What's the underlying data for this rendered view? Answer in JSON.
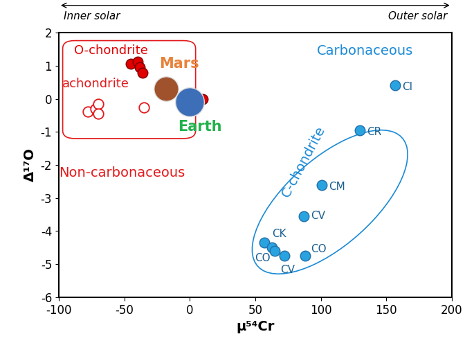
{
  "chart_data": {
    "type": "scatter",
    "x_label": "μ⁵⁴Cr",
    "y_label": "Δ¹⁷O",
    "xlim": [
      -100,
      200
    ],
    "ylim": [
      -6,
      2
    ],
    "xticks": [
      -100,
      -50,
      0,
      50,
      100,
      150,
      200
    ],
    "yticks": [
      -6,
      -5,
      -4,
      -3,
      -2,
      -1,
      0,
      1,
      2
    ],
    "grid": false,
    "arrow_labels": [
      "Inner solar",
      "Outer solar"
    ],
    "group_labels": [
      {
        "text": "Non-carbonaceous",
        "color": "#e31a1c"
      },
      {
        "text": "Carbonaceous",
        "color": "#1b8ad6"
      }
    ],
    "series": [
      {
        "name": "O-chondrite",
        "color": "#e00000",
        "marker": "circle",
        "x": [
          -45,
          -40,
          -38,
          -36,
          10
        ],
        "values": [
          1.05,
          1.12,
          0.95,
          0.78,
          0.0
        ]
      },
      {
        "name": "achondrite",
        "color": "#e31a1c",
        "marker": "open_circle",
        "x": [
          -78,
          -72,
          -70,
          -70,
          -35
        ],
        "values": [
          -0.38,
          -0.3,
          -0.15,
          -0.45,
          -0.25
        ]
      },
      {
        "name": "Mars",
        "color": "#e8823a",
        "marker": "planet",
        "x": [
          -18
        ],
        "values": [
          0.3
        ]
      },
      {
        "name": "Earth",
        "color": "#22b14c",
        "marker": "planet",
        "x": [
          0
        ],
        "values": [
          -0.1
        ]
      },
      {
        "name": "C-chondrite",
        "color": "#29a3e0",
        "marker": "circle",
        "x": [
          157,
          130,
          101,
          87,
          57,
          63,
          65,
          72,
          88
        ],
        "values": [
          0.4,
          -0.95,
          -2.6,
          -3.55,
          -4.35,
          -4.5,
          -4.6,
          -4.75,
          -4.75
        ],
        "labels": [
          "CI",
          "CR",
          "CM",
          "CV",
          "CK",
          "CO",
          null,
          "CV",
          "CO"
        ]
      }
    ]
  }
}
